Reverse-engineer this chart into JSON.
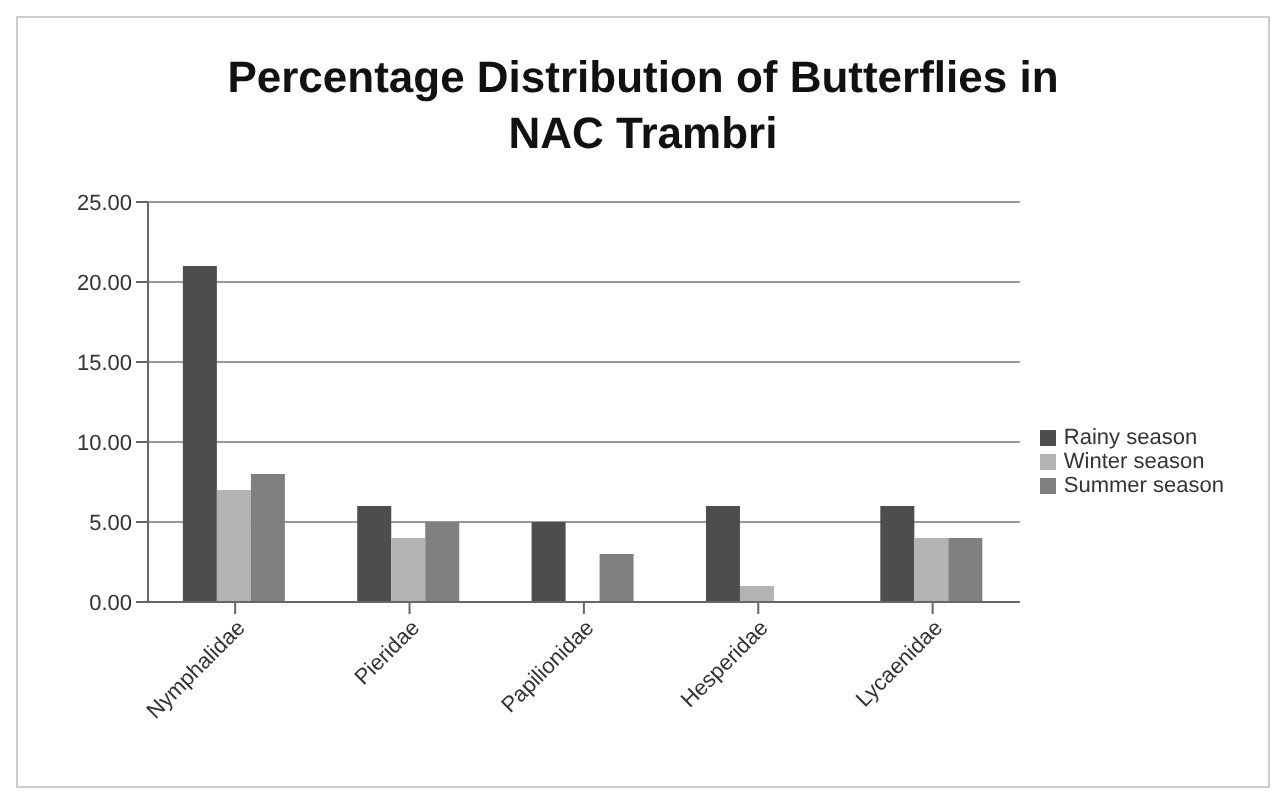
{
  "chart_data": {
    "type": "bar",
    "title": "Percentage Distribution of Butterflies in NAC Trambri",
    "categories": [
      "Nymphalidae",
      "Pieridae",
      "Papilionidae",
      "Hesperidae",
      "Lycaenidae"
    ],
    "series": [
      {
        "name": "Rainy season",
        "color": "#4d4d4d",
        "values": [
          21,
          6,
          5,
          6,
          6
        ]
      },
      {
        "name": "Winter season",
        "color": "#b3b3b3",
        "values": [
          7,
          4,
          0,
          1,
          4
        ]
      },
      {
        "name": "Summer season",
        "color": "#808080",
        "values": [
          8,
          5,
          3,
          0,
          4
        ]
      }
    ],
    "ylim": [
      0,
      25
    ],
    "yticks": [
      {
        "value": 0,
        "label": "0.00"
      },
      {
        "value": 5,
        "label": "5.00"
      },
      {
        "value": 10,
        "label": "10.00"
      },
      {
        "value": 15,
        "label": "15.00"
      },
      {
        "value": 20,
        "label": "20.00"
      },
      {
        "value": 25,
        "label": "25.00"
      }
    ],
    "grid": "y",
    "legend": "right"
  }
}
